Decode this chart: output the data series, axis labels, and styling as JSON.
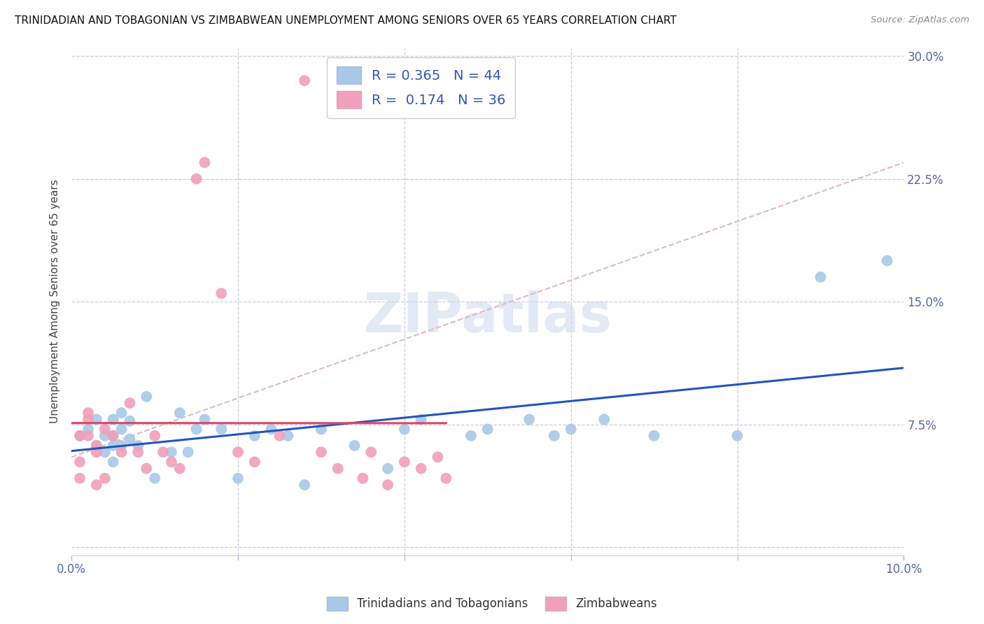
{
  "title": "TRINIDADIAN AND TOBAGONIAN VS ZIMBABWEAN UNEMPLOYMENT AMONG SENIORS OVER 65 YEARS CORRELATION CHART",
  "source": "Source: ZipAtlas.com",
  "ylabel": "Unemployment Among Seniors over 65 years",
  "xlim": [
    0.0,
    0.1
  ],
  "ylim": [
    -0.005,
    0.305
  ],
  "xticks": [
    0.0,
    0.02,
    0.04,
    0.06,
    0.08,
    0.1
  ],
  "xticklabels": [
    "0.0%",
    "",
    "",
    "",
    "",
    "10.0%"
  ],
  "yticks": [
    0.0,
    0.075,
    0.15,
    0.225,
    0.3
  ],
  "yticklabels_right": [
    "",
    "7.5%",
    "15.0%",
    "22.5%",
    "30.0%"
  ],
  "blue_R": 0.365,
  "blue_N": 44,
  "pink_R": 0.174,
  "pink_N": 36,
  "blue_color": "#a8c8e8",
  "pink_color": "#f0a0b8",
  "blue_line_color": "#2255bb",
  "pink_line_color": "#dd4466",
  "diag_line_color": "#e0b8c8",
  "legend_label_blue": "Trinidadians and Tobagonians",
  "legend_label_pink": "Zimbabweans",
  "blue_x": [
    0.001,
    0.002,
    0.003,
    0.003,
    0.004,
    0.004,
    0.005,
    0.005,
    0.005,
    0.005,
    0.006,
    0.006,
    0.006,
    0.007,
    0.007,
    0.008,
    0.009,
    0.01,
    0.012,
    0.013,
    0.014,
    0.015,
    0.016,
    0.018,
    0.02,
    0.022,
    0.024,
    0.026,
    0.028,
    0.03,
    0.034,
    0.038,
    0.04,
    0.042,
    0.048,
    0.05,
    0.055,
    0.058,
    0.06,
    0.064,
    0.07,
    0.08,
    0.09,
    0.098
  ],
  "blue_y": [
    0.068,
    0.072,
    0.062,
    0.078,
    0.058,
    0.068,
    0.052,
    0.062,
    0.068,
    0.078,
    0.062,
    0.072,
    0.082,
    0.066,
    0.077,
    0.062,
    0.092,
    0.042,
    0.058,
    0.082,
    0.058,
    0.072,
    0.078,
    0.072,
    0.042,
    0.068,
    0.072,
    0.068,
    0.038,
    0.072,
    0.062,
    0.048,
    0.072,
    0.078,
    0.068,
    0.072,
    0.078,
    0.068,
    0.072,
    0.078,
    0.068,
    0.068,
    0.165,
    0.175
  ],
  "pink_x": [
    0.001,
    0.001,
    0.001,
    0.002,
    0.002,
    0.002,
    0.003,
    0.003,
    0.003,
    0.004,
    0.004,
    0.005,
    0.006,
    0.007,
    0.008,
    0.009,
    0.01,
    0.011,
    0.012,
    0.013,
    0.015,
    0.016,
    0.018,
    0.02,
    0.022,
    0.025,
    0.028,
    0.03,
    0.032,
    0.035,
    0.036,
    0.038,
    0.04,
    0.042,
    0.044,
    0.045
  ],
  "pink_y": [
    0.068,
    0.052,
    0.042,
    0.082,
    0.078,
    0.068,
    0.062,
    0.058,
    0.038,
    0.072,
    0.042,
    0.068,
    0.058,
    0.088,
    0.058,
    0.048,
    0.068,
    0.058,
    0.052,
    0.048,
    0.225,
    0.235,
    0.155,
    0.058,
    0.052,
    0.068,
    0.285,
    0.058,
    0.048,
    0.042,
    0.058,
    0.038,
    0.052,
    0.048,
    0.055,
    0.042
  ],
  "watermark_text": "ZIPatlas",
  "background_color": "#ffffff",
  "grid_color": "#ccccdd",
  "tick_color": "#5566aa",
  "label_color": "#444444",
  "legend_text_color": "#3355bb"
}
